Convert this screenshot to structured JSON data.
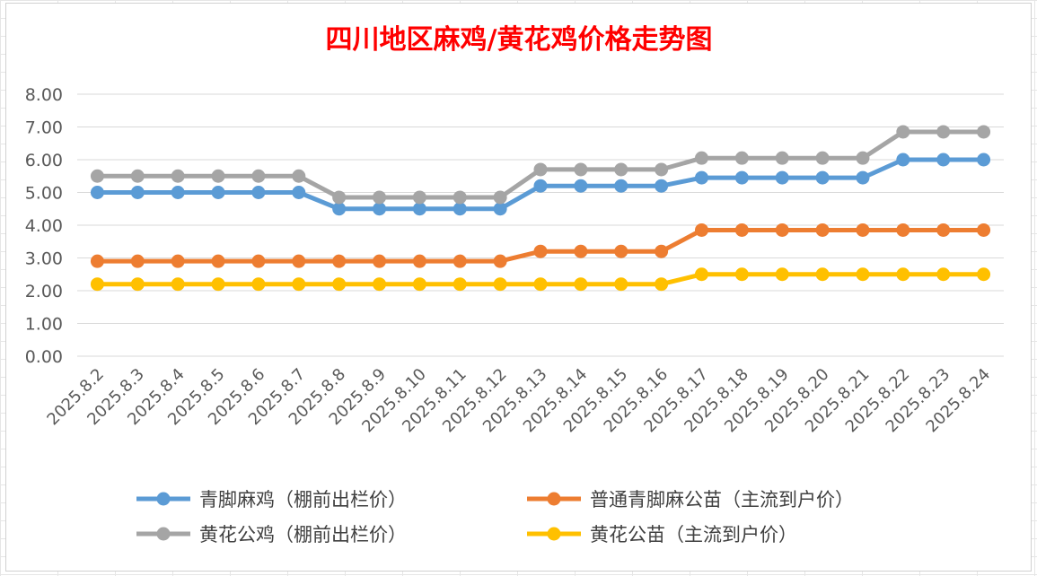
{
  "chart_data": {
    "type": "line",
    "title": "四川地区麻鸡/黄花鸡价格走势图",
    "xlabel": "",
    "ylabel": "",
    "categories": [
      "2025.8.2",
      "2025.8.3",
      "2025.8.4",
      "2025.8.5",
      "2025.8.6",
      "2025.8.7",
      "2025.8.8",
      "2025.8.9",
      "2025.8.10",
      "2025.8.11",
      "2025.8.12",
      "2025.8.13",
      "2025.8.14",
      "2025.8.15",
      "2025.8.16",
      "2025.8.17",
      "2025.8.18",
      "2025.8.19",
      "2025.8.20",
      "2025.8.21",
      "2025.8.22",
      "2025.8.23",
      "2025.8.24"
    ],
    "yticks": [
      "0.00",
      "1.00",
      "2.00",
      "3.00",
      "4.00",
      "5.00",
      "6.00",
      "7.00",
      "8.00"
    ],
    "ylim": [
      0,
      8
    ],
    "grid": true,
    "legend_position": "bottom",
    "series": [
      {
        "name": "青脚麻鸡（棚前出栏价）",
        "color": "#5b9bd5",
        "values": [
          5.0,
          5.0,
          5.0,
          5.0,
          5.0,
          5.0,
          4.5,
          4.5,
          4.5,
          4.5,
          4.5,
          5.2,
          5.2,
          5.2,
          5.2,
          5.45,
          5.45,
          5.45,
          5.45,
          5.45,
          6.0,
          6.0,
          6.0
        ]
      },
      {
        "name": "普通青脚麻公苗（主流到户价）",
        "color": "#ed7d31",
        "values": [
          2.9,
          2.9,
          2.9,
          2.9,
          2.9,
          2.9,
          2.9,
          2.9,
          2.9,
          2.9,
          2.9,
          3.2,
          3.2,
          3.2,
          3.2,
          3.85,
          3.85,
          3.85,
          3.85,
          3.85,
          3.85,
          3.85,
          3.85
        ]
      },
      {
        "name": "黄花公鸡（棚前出栏价）",
        "color": "#a5a5a5",
        "values": [
          5.5,
          5.5,
          5.5,
          5.5,
          5.5,
          5.5,
          4.85,
          4.85,
          4.85,
          4.85,
          4.85,
          5.7,
          5.7,
          5.7,
          5.7,
          6.05,
          6.05,
          6.05,
          6.05,
          6.05,
          6.85,
          6.85,
          6.85
        ]
      },
      {
        "name": "黄花公苗（主流到户价）",
        "color": "#ffc000",
        "values": [
          2.2,
          2.2,
          2.2,
          2.2,
          2.2,
          2.2,
          2.2,
          2.2,
          2.2,
          2.2,
          2.2,
          2.2,
          2.2,
          2.2,
          2.2,
          2.5,
          2.5,
          2.5,
          2.5,
          2.5,
          2.5,
          2.5,
          2.5
        ]
      }
    ]
  }
}
